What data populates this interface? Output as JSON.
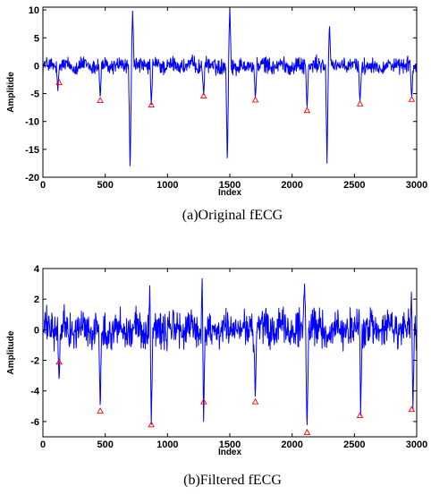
{
  "chart_data": [
    {
      "type": "line",
      "caption": "(a)Original fECG",
      "xlabel": "Index",
      "ylabel": "Amplitide",
      "xlim": [
        0,
        3000
      ],
      "ylim": [
        -20,
        10.5
      ],
      "xticks": [
        0,
        500,
        1000,
        1500,
        2000,
        2500,
        3000
      ],
      "yticks": [
        -20,
        -15,
        -10,
        -5,
        0,
        5,
        10
      ],
      "series": [
        {
          "color": "#0000ff",
          "baseline_noise_amplitude": 1.2,
          "spikes": [
            {
              "x": 120,
              "y": -4.5
            },
            {
              "x": 460,
              "y": -6
            },
            {
              "x": 700,
              "y": -19.5
            },
            {
              "x": 720,
              "y": 9.8
            },
            {
              "x": 870,
              "y": -7
            },
            {
              "x": 1290,
              "y": -5.2
            },
            {
              "x": 1480,
              "y": -18
            },
            {
              "x": 1500,
              "y": 10.5
            },
            {
              "x": 1705,
              "y": -6
            },
            {
              "x": 2120,
              "y": -8
            },
            {
              "x": 2280,
              "y": -17.5
            },
            {
              "x": 2300,
              "y": 7.6
            },
            {
              "x": 2545,
              "y": -6.8
            },
            {
              "x": 2960,
              "y": -6
            }
          ]
        }
      ],
      "markers": {
        "color": "#ff0000",
        "shape": "triangle",
        "points": [
          [
            130,
            -3
          ],
          [
            460,
            -6.2
          ],
          [
            870,
            -7
          ],
          [
            1290,
            -5.4
          ],
          [
            1705,
            -6.1
          ],
          [
            2120,
            -8
          ],
          [
            2545,
            -6.8
          ],
          [
            2960,
            -6
          ]
        ]
      }
    },
    {
      "type": "line",
      "caption": "(b)Filtered fECG",
      "xlabel": "Index",
      "ylabel": "Amplitude",
      "xlim": [
        0,
        3000
      ],
      "ylim": [
        -7,
        4
      ],
      "xticks": [
        0,
        500,
        1000,
        1500,
        2000,
        2500,
        3000
      ],
      "yticks": [
        -6,
        -4,
        -2,
        0,
        2,
        4
      ],
      "series": [
        {
          "color": "#0000ff",
          "baseline_noise_amplitude": 1.0,
          "spikes": [
            {
              "x": 130,
              "y": -3.4
            },
            {
              "x": 460,
              "y": -5.3
            },
            {
              "x": 860,
              "y": 3.5
            },
            {
              "x": 870,
              "y": -6.2
            },
            {
              "x": 1280,
              "y": 4.0
            },
            {
              "x": 1290,
              "y": -6.0
            },
            {
              "x": 1705,
              "y": -4.7
            },
            {
              "x": 2100,
              "y": 3.0
            },
            {
              "x": 2120,
              "y": -6.8
            },
            {
              "x": 2545,
              "y": 3.3
            },
            {
              "x": 2550,
              "y": -5.6
            },
            {
              "x": 2960,
              "y": 3.0
            },
            {
              "x": 2970,
              "y": -5.2
            }
          ]
        }
      ],
      "markers": {
        "color": "#ff0000",
        "shape": "triangle",
        "points": [
          [
            130,
            -2.1
          ],
          [
            460,
            -5.3
          ],
          [
            870,
            -6.2
          ],
          [
            1290,
            -4.7
          ],
          [
            1705,
            -4.7
          ],
          [
            2120,
            -6.7
          ],
          [
            2545,
            -5.6
          ],
          [
            2960,
            -5.2
          ]
        ]
      }
    }
  ]
}
